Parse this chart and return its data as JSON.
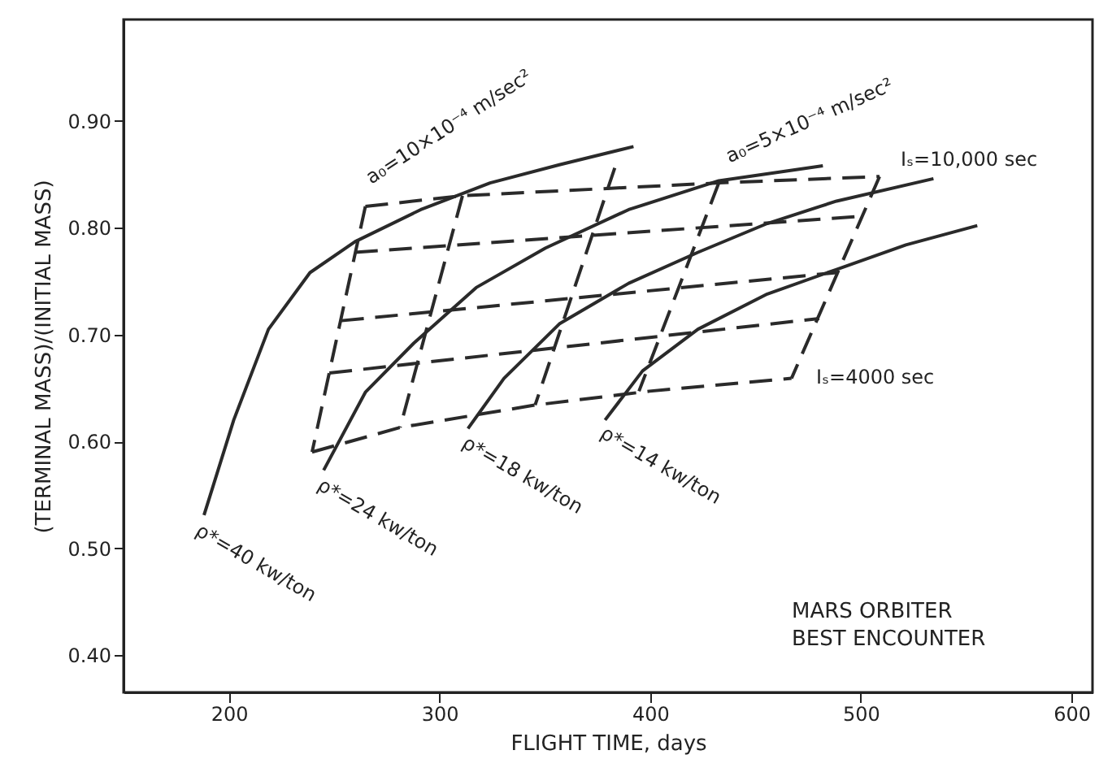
{
  "chart_data": {
    "type": "line",
    "xlabel": "FLIGHT TIME, days",
    "ylabel": "(TERMINAL MASS)/(INITIAL MASS)",
    "xlim": [
      150,
      610
    ],
    "ylim": [
      0.365,
      0.995
    ],
    "xticks": [
      200,
      300,
      400,
      500,
      600
    ],
    "yticks": [
      {
        "value": 0.4,
        "label": "0.40"
      },
      {
        "value": 0.5,
        "label": "0.50"
      },
      {
        "value": 0.6,
        "label": "0.60"
      },
      {
        "value": 0.7,
        "label": "0.70"
      },
      {
        "value": 0.8,
        "label": "0.80"
      },
      {
        "value": 0.9,
        "label": "0.90"
      }
    ],
    "grid": false,
    "marker": "none",
    "series": [
      {
        "color": "#2a2a2a",
        "line_style": "solid",
        "x": [
          188.2,
          202.3,
          218.8,
          238.5,
          259.9,
          291.1,
          324,
          356.9,
          392.1
        ],
        "values": [
          0.531,
          0.62,
          0.705,
          0.758,
          0.787,
          0.817,
          0.842,
          0.859,
          0.876
        ]
      },
      {
        "color": "#2a2a2a",
        "line_style": "solid",
        "x": [
          245,
          264.8,
          287.8,
          317.4,
          350.3,
          389.8,
          432.6,
          482
        ],
        "values": [
          0.573,
          0.646,
          0.692,
          0.744,
          0.781,
          0.817,
          0.844,
          0.858
        ]
      },
      {
        "color": "#2a2a2a",
        "line_style": "solid",
        "x": [
          313.5,
          330.6,
          356.9,
          389.8,
          422.7,
          455.6,
          488.5,
          534.5
        ],
        "values": [
          0.612,
          0.659,
          0.71,
          0.748,
          0.777,
          0.804,
          0.825,
          0.846
        ]
      },
      {
        "color": "#2a2a2a",
        "line_style": "solid",
        "x": [
          378.6,
          396.4,
          422.7,
          455.6,
          488.5,
          521.4,
          555.3
        ],
        "values": [
          0.62,
          0.666,
          0.705,
          0.738,
          0.761,
          0.784,
          0.802
        ]
      },
      {
        "color": "#2a2a2a",
        "line_style": "dashed",
        "x": [
          264.8,
          310.9,
          432.6,
          508.9
        ],
        "values": [
          0.82,
          0.83,
          0.842,
          0.848
        ]
      },
      {
        "color": "#2a2a2a",
        "line_style": "dashed",
        "x": [
          259.9,
          501.6
        ],
        "values": [
          0.777,
          0.811
        ]
      },
      {
        "color": "#2a2a2a",
        "line_style": "dashed",
        "x": [
          253.3,
          488.5
        ],
        "values": [
          0.713,
          0.758
        ]
      },
      {
        "color": "#2a2a2a",
        "line_style": "dashed",
        "x": [
          247.7,
          480.3
        ],
        "values": [
          0.664,
          0.715
        ]
      },
      {
        "color": "#2a2a2a",
        "line_style": "dashed",
        "x": [
          239.5,
          281.3,
          345.4,
          399.7,
          467.1
        ],
        "values": [
          0.59,
          0.613,
          0.634,
          0.647,
          0.659
        ]
      },
      {
        "color": "#2a2a2a",
        "line_style": "dashed",
        "x": [
          264.8,
          239.5
        ],
        "values": [
          0.82,
          0.59
        ]
      },
      {
        "color": "#2a2a2a",
        "line_style": "dashed",
        "x": [
          310.9,
          281.3
        ],
        "values": [
          0.83,
          0.613
        ]
      },
      {
        "color": "#2a2a2a",
        "line_style": "dashed",
        "x": [
          383.2,
          345.4
        ],
        "values": [
          0.856,
          0.634
        ]
      },
      {
        "color": "#2a2a2a",
        "line_style": "dashed",
        "x": [
          432.6,
          394.7
        ],
        "values": [
          0.842,
          0.647
        ]
      },
      {
        "color": "#2a2a2a",
        "line_style": "dashed",
        "x": [
          508.9,
          467.1
        ],
        "values": [
          0.848,
          0.659
        ]
      }
    ],
    "annotations": [
      "a₀=10×10⁻⁴ m/sec²",
      "a₀=5×10⁻⁴ m/sec²",
      "Iₛ=10,000 sec",
      "Iₛ=4000 sec",
      "ρ*=40 kw/ton",
      "ρ*=24 kw/ton",
      "ρ*=18 kw/ton",
      "ρ*=14 kw/ton",
      "MARS ORBITER",
      "BEST ENCOUNTER"
    ]
  }
}
